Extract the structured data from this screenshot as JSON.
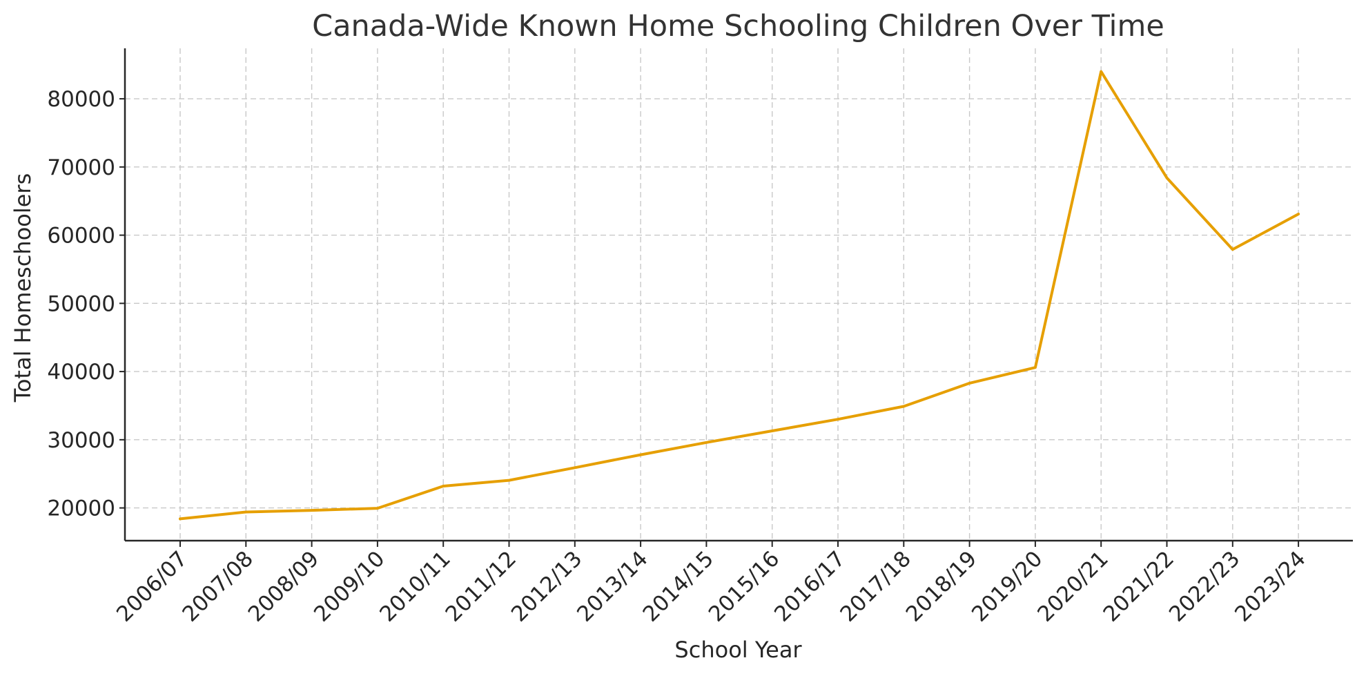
{
  "chart_data": {
    "type": "line",
    "title": "Canada-Wide Known Home Schooling Children Over Time",
    "xlabel": "School Year",
    "ylabel": "Total Homeschoolers",
    "categories": [
      "2006/07",
      "2007/08",
      "2008/09",
      "2009/10",
      "2010/11",
      "2011/12",
      "2012/13",
      "2013/14",
      "2014/15",
      "2015/16",
      "2016/17",
      "2017/18",
      "2018/19",
      "2019/20",
      "2020/21",
      "2021/22",
      "2022/23",
      "2023/24"
    ],
    "series": [
      {
        "values": [
          18400,
          19400,
          19650,
          19950,
          23200,
          24050,
          25900,
          27800,
          29600,
          31300,
          33000,
          34900,
          38300,
          40600,
          84000,
          68400,
          57900,
          63100
        ],
        "color": "#E69F00"
      }
    ],
    "yticks": [
      20000,
      30000,
      40000,
      50000,
      60000,
      70000,
      80000
    ],
    "ylim": [
      15200,
      87400
    ],
    "grid": true,
    "legend": "none"
  }
}
